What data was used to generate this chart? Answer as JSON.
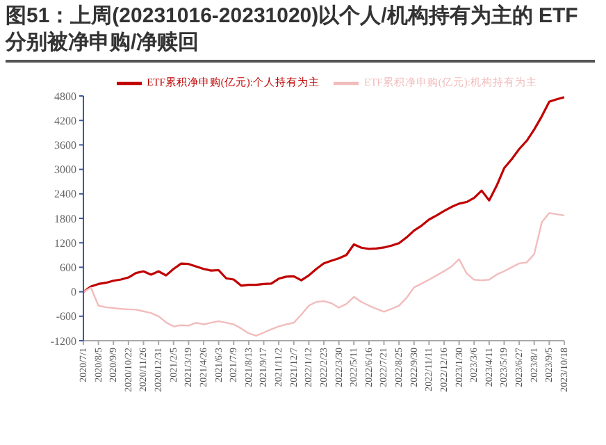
{
  "chart_data": {
    "type": "line",
    "title": "图51：上周(20231016-20231020)以个人/机构持有为主的 ETF 分别被净申购/净赎回",
    "categories": [
      "2020/7/1",
      null,
      "2020/8/5",
      null,
      "2020/9/9",
      null,
      "2020/10/22",
      null,
      "2020/11/26",
      null,
      "2020/12/31",
      null,
      "2021/2/5",
      null,
      "2021/3/19",
      null,
      "2021/4/26",
      null,
      "2021/6/3",
      null,
      "2021/7/9",
      null,
      "2021/8/13",
      null,
      "2021/9/17",
      null,
      "2021/11/2",
      null,
      "2021/12/7",
      null,
      "2022/1/12",
      null,
      "2022/2/23",
      null,
      "2022/3/30",
      null,
      "2022/5/11",
      null,
      "2022/6/16",
      null,
      "2022/7/21",
      null,
      "2022/8/25",
      null,
      "2022/9/30",
      null,
      "2022/11/11",
      null,
      "2022/12/16",
      null,
      "2023/1/30",
      null,
      "2023/3/6",
      null,
      "2023/4/11",
      null,
      "2023/5/19",
      null,
      "2023/6/27",
      null,
      "2023/8/1",
      null,
      "2023/9/5",
      null,
      "2023/10/18"
    ],
    "series": [
      {
        "name": "ETF累积净申购(亿元):个人持有为主",
        "color": "#c00000",
        "values": [
          0,
          130,
          190,
          220,
          270,
          300,
          350,
          460,
          500,
          420,
          500,
          400,
          560,
          690,
          680,
          620,
          560,
          520,
          530,
          330,
          300,
          150,
          170,
          170,
          190,
          200,
          320,
          370,
          380,
          280,
          400,
          560,
          695,
          760,
          820,
          900,
          1160,
          1080,
          1050,
          1060,
          1085,
          1130,
          1190,
          1330,
          1500,
          1620,
          1770,
          1870,
          1980,
          2080,
          2160,
          2200,
          2300,
          2480,
          2240,
          2600,
          3030,
          3250,
          3500,
          3700,
          3980,
          4300,
          4660,
          4720,
          4770
        ]
      },
      {
        "name": "ETF累积净申购(亿元):机构持有为主",
        "color": "#f2bcbc",
        "values": [
          0,
          100,
          -340,
          -380,
          -400,
          -420,
          -430,
          -440,
          -480,
          -520,
          -600,
          -750,
          -850,
          -820,
          -830,
          -760,
          -800,
          -760,
          -720,
          -760,
          -800,
          -900,
          -1020,
          -1080,
          -1000,
          -920,
          -850,
          -800,
          -760,
          -560,
          -340,
          -250,
          -230,
          -280,
          -390,
          -300,
          -125,
          -250,
          -340,
          -420,
          -490,
          -420,
          -340,
          -150,
          105,
          200,
          295,
          400,
          505,
          620,
          800,
          450,
          295,
          280,
          295,
          420,
          505,
          600,
          695,
          720,
          925,
          1700,
          1930,
          1900,
          1870
        ]
      }
    ],
    "ylim": [
      -1200,
      4800
    ],
    "yticks": [
      -1200,
      -600,
      0,
      600,
      1200,
      1800,
      2400,
      3000,
      3600,
      4200,
      4800
    ],
    "legend": "top",
    "marker": "none",
    "line_style": "solid"
  }
}
